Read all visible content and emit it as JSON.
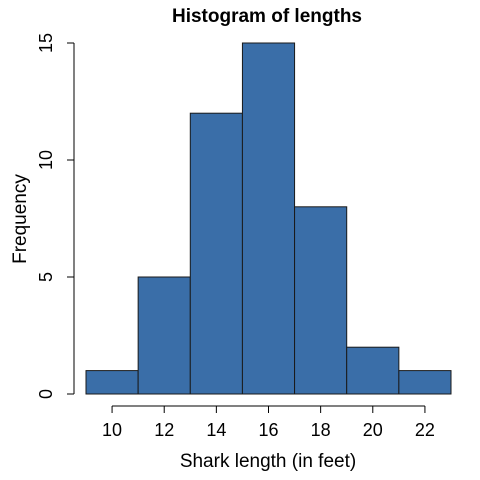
{
  "chart_data": {
    "type": "bar",
    "title": "Histogram of lengths",
    "xlabel": "Shark length (in feet)",
    "ylabel": "Frequency",
    "bin_edges": [
      9,
      11,
      13,
      15,
      17,
      19,
      21,
      23
    ],
    "values": [
      1,
      5,
      12,
      15,
      8,
      2,
      1
    ],
    "x_ticks": [
      10,
      12,
      14,
      16,
      18,
      20,
      22
    ],
    "y_ticks": [
      0,
      5,
      10,
      15
    ],
    "xlim": [
      9,
      23
    ],
    "ylim": [
      0,
      15
    ],
    "bar_color": "#3a6ea8",
    "grid": false,
    "legend": "none"
  }
}
